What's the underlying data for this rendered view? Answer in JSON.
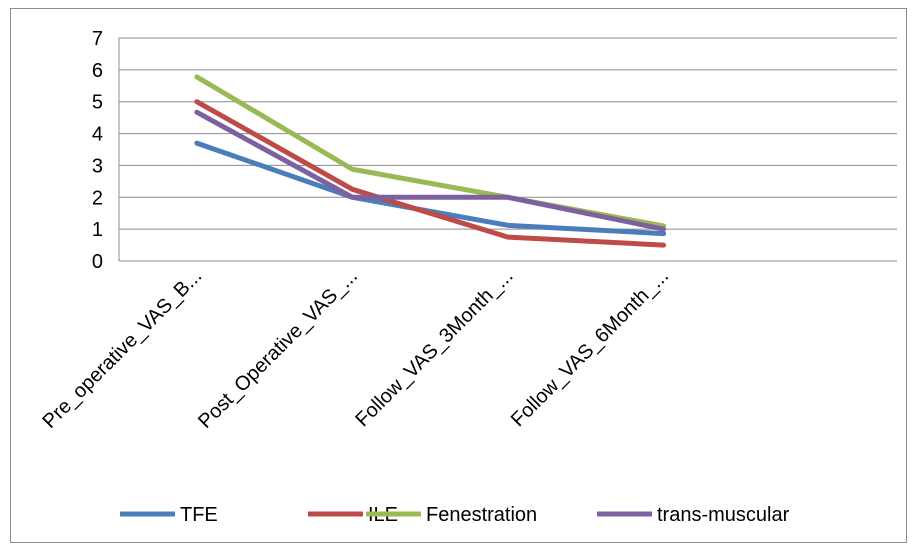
{
  "chart_data": {
    "type": "line",
    "title": "",
    "xlabel": "",
    "ylabel": "",
    "categories": [
      "Pre_operative_VAS_B...",
      "Post_Operative_VAS_...",
      "Follow_VAS_3Month_...",
      "Follow_VAS_6Month_..."
    ],
    "ylim": [
      0,
      7
    ],
    "yticks": [
      "0",
      "1",
      "2",
      "3",
      "4",
      "5",
      "6",
      "7"
    ],
    "grid": true,
    "legend_position": "bottom",
    "series": [
      {
        "name": "TFE",
        "color": "#4a7ebb",
        "values": [
          3.7,
          2.0,
          1.12,
          0.86
        ]
      },
      {
        "name": "ILE",
        "color": "#be4b48",
        "values": [
          5.0,
          2.25,
          0.75,
          0.5
        ]
      },
      {
        "name": "Fenestration",
        "color": "#98b954",
        "values": [
          5.78,
          2.88,
          2.0,
          1.1
        ]
      },
      {
        "name": "trans-muscular",
        "color": "#7d60a0",
        "values": [
          4.67,
          2.0,
          2.0,
          1.0
        ]
      }
    ]
  }
}
